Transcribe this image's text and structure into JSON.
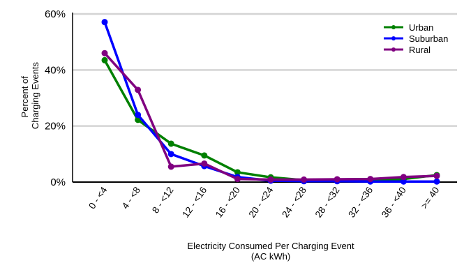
{
  "chart_data": {
    "type": "line",
    "title": "",
    "xlabel": [
      "Electricity Consumed Per Charging Event",
      "(AC kWh)"
    ],
    "ylabel": [
      "Percent of",
      "Charging Events"
    ],
    "categories": [
      "0 - <4",
      "4 - <8",
      "8 - <12",
      "12 - <16",
      "16 - <20",
      "20 - <24",
      "24 - <28",
      "28 - <32",
      "32 - <36",
      "36 - <40",
      ">= 40"
    ],
    "y_ticks": [
      0,
      20,
      40,
      60
    ],
    "y_tick_labels": [
      "0%",
      "20%",
      "40%",
      "60%"
    ],
    "ylim": [
      0,
      60
    ],
    "grid": true,
    "legend_position": "top-right",
    "series": [
      {
        "name": "Urban",
        "color": "#008000",
        "values": [
          43.5,
          22.2,
          13.7,
          9.5,
          3.5,
          1.7,
          0.7,
          0.8,
          0.8,
          1.1,
          2.5
        ]
      },
      {
        "name": "Suburban",
        "color": "#0000ff",
        "values": [
          57.1,
          24.0,
          10.0,
          5.7,
          1.8,
          0.5,
          0.3,
          0.3,
          0.2,
          0.2,
          0.2
        ]
      },
      {
        "name": "Rural",
        "color": "#800080",
        "values": [
          46.0,
          32.9,
          5.5,
          6.6,
          1.1,
          0.9,
          0.9,
          1.0,
          1.1,
          1.8,
          2.2
        ]
      }
    ]
  }
}
